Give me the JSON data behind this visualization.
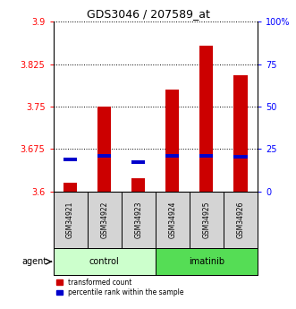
{
  "title": "GDS3046 / 207589_at",
  "samples": [
    "GSM34921",
    "GSM34922",
    "GSM34923",
    "GSM34924",
    "GSM34925",
    "GSM34926"
  ],
  "groups": [
    "control",
    "control",
    "control",
    "imatinib",
    "imatinib",
    "imatinib"
  ],
  "red_values": [
    3.615,
    3.75,
    3.623,
    3.78,
    3.858,
    3.805
  ],
  "blue_values": [
    3.654,
    3.66,
    3.649,
    3.66,
    3.66,
    3.658
  ],
  "ymin": 3.6,
  "ymax": 3.9,
  "y_ticks": [
    3.6,
    3.675,
    3.75,
    3.825,
    3.9
  ],
  "y_tick_labels": [
    "3.6",
    "3.675",
    "3.75",
    "3.825",
    "3.9"
  ],
  "right_y_ticks": [
    0,
    25,
    50,
    75,
    100
  ],
  "right_y_tick_labels": [
    "0",
    "25",
    "50",
    "75",
    "100%"
  ],
  "bar_width": 0.4,
  "red_color": "#cc0000",
  "blue_color": "#0000cc",
  "control_color": "#ccffcc",
  "imatinib_color": "#55dd55",
  "legend_red": "transformed count",
  "legend_blue": "percentile rank within the sample"
}
